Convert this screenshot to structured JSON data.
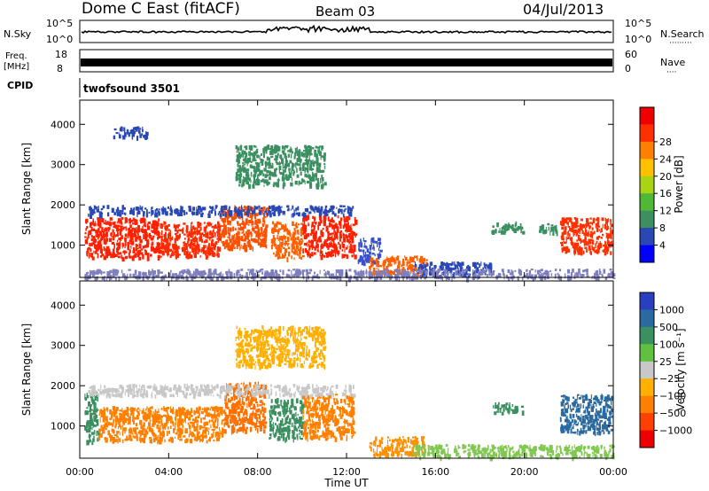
{
  "header": {
    "station": "Dome C East (fitACF)",
    "beam": "Beam 03",
    "date": "04/Jul/2013"
  },
  "status_panels": {
    "nsky_label": "N.Sky",
    "nsearch_label": "N.Search",
    "nsearch_dots": "·········",
    "noise_ticks_left": [
      "10^5",
      "10^0"
    ],
    "noise_ticks_right": [
      "10^5",
      "10^0"
    ],
    "freq_label_1": "Freq.",
    "freq_label_2": "[MHz]",
    "freq_ticks": [
      "18",
      "8"
    ],
    "nave_label": "Nave",
    "nave_dots": "····",
    "nave_ticks": [
      "60",
      "0"
    ],
    "cpid_label": "CPID",
    "cpid_name": "twofsound 3501"
  },
  "chart_data": [
    {
      "type": "heatmap",
      "name": "power",
      "ylabel": "Slant Range [km]",
      "y_ticks": [
        "1000",
        "2000",
        "3000",
        "4000"
      ],
      "ylim": [
        200,
        4600
      ],
      "colorbar_label": "Power [dB]",
      "colorbar_ticks": [
        "4",
        "8",
        "12",
        "16",
        "20",
        "24",
        "28"
      ],
      "colorbar_colors": [
        "#0000ff",
        "#2a48b4",
        "#3b8f60",
        "#50b836",
        "#a8d414",
        "#ffc000",
        "#ff8000",
        "#ff3000",
        "#ee0000"
      ],
      "regions": [
        {
          "t0": 0.2,
          "t1": 3.6,
          "r0": 700,
          "r1": 1700,
          "color": "#ff2000"
        },
        {
          "t0": 3.6,
          "t1": 6.3,
          "r0": 750,
          "r1": 1600,
          "color": "#ff2a00"
        },
        {
          "t0": 6.3,
          "t1": 8.4,
          "r0": 950,
          "r1": 2000,
          "color": "#ff5000"
        },
        {
          "t0": 8.6,
          "t1": 10.0,
          "r0": 700,
          "r1": 1600,
          "color": "#ff6000"
        },
        {
          "t0": 10.0,
          "t1": 12.4,
          "r0": 750,
          "r1": 1750,
          "color": "#ff2000"
        },
        {
          "t0": 12.5,
          "t1": 13.5,
          "r0": 600,
          "r1": 1200,
          "color": "#3a50c8"
        },
        {
          "t0": 13.0,
          "t1": 15.6,
          "r0": 300,
          "r1": 750,
          "color": "#ff6000"
        },
        {
          "t0": 15.0,
          "t1": 18.5,
          "r0": 250,
          "r1": 600,
          "color": "#2a48b4"
        },
        {
          "t0": 18.5,
          "t1": 19.9,
          "r0": 1350,
          "r1": 1600,
          "color": "#3b8f60"
        },
        {
          "t0": 20.6,
          "t1": 21.6,
          "r0": 1350,
          "r1": 1550,
          "color": "#3b8f60"
        },
        {
          "t0": 21.6,
          "t1": 23.9,
          "r0": 850,
          "r1": 1700,
          "color": "#ff3000"
        },
        {
          "t0": 0.2,
          "t1": 24.0,
          "r0": 200,
          "r1": 420,
          "color": "#7f7fbf"
        },
        {
          "t0": 0.3,
          "t1": 12.3,
          "r0": 1780,
          "r1": 2000,
          "color": "#2a48b4"
        },
        {
          "t0": 1.5,
          "t1": 3.0,
          "r0": 3700,
          "r1": 3950,
          "color": "#2a48b4"
        },
        {
          "t0": 7.0,
          "t1": 11.0,
          "r0": 2500,
          "r1": 3500,
          "color": "#3b8f60"
        }
      ]
    },
    {
      "type": "heatmap",
      "name": "velocity",
      "ylabel": "Slant Range [km]",
      "y_ticks": [
        "1000",
        "2000",
        "3000",
        "4000"
      ],
      "ylim": [
        200,
        4600
      ],
      "colorbar_label": "Velocity [m s⁻¹]",
      "colorbar_ticks": [
        "1000",
        "500",
        "100",
        "25",
        "−25",
        "−100",
        "−500",
        "−1000"
      ],
      "colorbar_colors": [
        "#2840c0",
        "#2a6aa0",
        "#3a9060",
        "#60c040",
        "#c8c8c8",
        "#ffb000",
        "#ff8000",
        "#ff4000",
        "#ee0000"
      ],
      "regions": [
        {
          "t0": 0.2,
          "t1": 0.8,
          "r0": 600,
          "r1": 1900,
          "color": "#3b8f60"
        },
        {
          "t0": 0.8,
          "t1": 6.5,
          "r0": 650,
          "r1": 1500,
          "color": "#ff8000"
        },
        {
          "t0": 6.5,
          "t1": 8.3,
          "r0": 900,
          "r1": 2100,
          "color": "#ff7000"
        },
        {
          "t0": 8.5,
          "t1": 10.0,
          "r0": 700,
          "r1": 1700,
          "color": "#3b8f60"
        },
        {
          "t0": 10.0,
          "t1": 12.3,
          "r0": 700,
          "r1": 1800,
          "color": "#ff8000"
        },
        {
          "t0": 13.0,
          "t1": 15.5,
          "r0": 300,
          "r1": 750,
          "color": "#ff9000"
        },
        {
          "t0": 15.0,
          "t1": 24.0,
          "r0": 250,
          "r1": 550,
          "color": "#80c850"
        },
        {
          "t0": 18.5,
          "t1": 19.9,
          "r0": 1350,
          "r1": 1600,
          "color": "#3b8f60"
        },
        {
          "t0": 21.6,
          "t1": 23.9,
          "r0": 850,
          "r1": 1800,
          "color": "#2a6aa0"
        },
        {
          "t0": 0.3,
          "t1": 12.3,
          "r0": 1780,
          "r1": 2050,
          "color": "#c8c8c8"
        },
        {
          "t0": 7.0,
          "t1": 11.0,
          "r0": 2500,
          "r1": 3500,
          "color": "#ffb000"
        }
      ]
    }
  ],
  "x_axis": {
    "label": "Time UT",
    "ticks": [
      "00:00",
      "04:00",
      "08:00",
      "12:00",
      "16:00",
      "20:00",
      "00:00"
    ],
    "xlim_hours": [
      0,
      24
    ]
  },
  "colors": {
    "axis": "#000000",
    "noise_line": "#000000"
  }
}
